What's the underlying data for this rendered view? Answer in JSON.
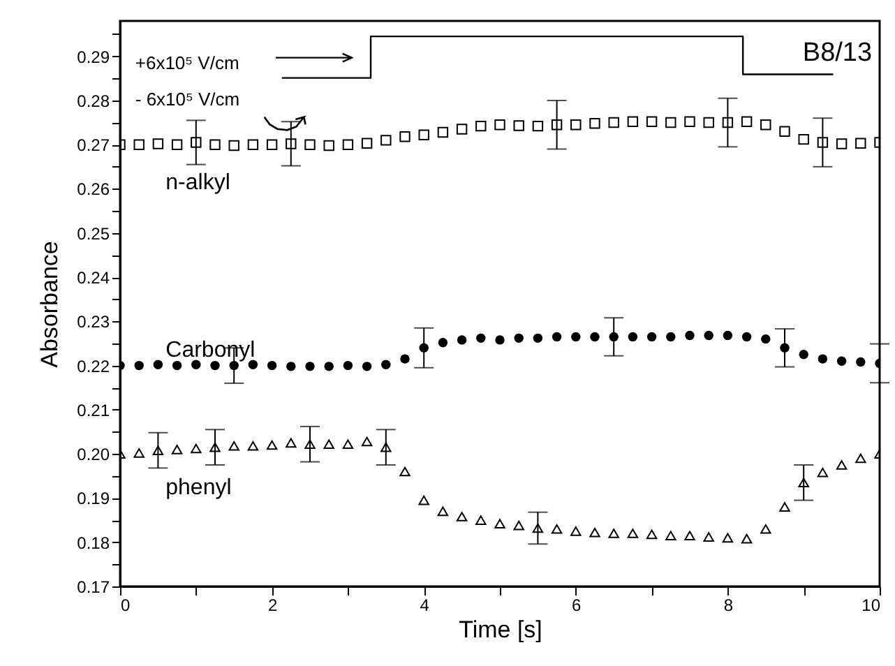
{
  "chart_data": {
    "type": "scatter",
    "xlabel": "Time [s]",
    "ylabel": "Absorbance",
    "xlim": [
      0,
      10
    ],
    "ylim": [
      0.17,
      0.298
    ],
    "xticks": [
      0,
      {
        "value": 1,
        "label": null
      },
      2,
      {
        "value": 3,
        "label": null
      },
      4,
      {
        "value": 5,
        "label": null
      },
      6,
      {
        "value": 7,
        "label": null
      },
      8,
      {
        "value": 9,
        "label": null
      },
      10
    ],
    "yticks": [
      0.17,
      {
        "value": 0.175,
        "label": null
      },
      0.18,
      {
        "value": 0.185,
        "label": null
      },
      0.19,
      {
        "value": 0.195,
        "label": null
      },
      {
        "value": 0.2,
        "label": "0.20"
      },
      {
        "value": 0.205,
        "label": null
      },
      0.21,
      {
        "value": 0.215,
        "label": null
      },
      0.22,
      {
        "value": 0.225,
        "label": null
      },
      0.23,
      {
        "value": 0.235,
        "label": null
      },
      0.24,
      {
        "value": 0.245,
        "label": null
      },
      0.25,
      {
        "value": 0.255,
        "label": null
      },
      0.26,
      {
        "value": 0.265,
        "label": null
      },
      0.27,
      {
        "value": 0.275,
        "label": null
      },
      0.28,
      {
        "value": 0.285,
        "label": null
      },
      0.29,
      {
        "value": 0.295,
        "label": null
      }
    ],
    "x": [
      0,
      0.25,
      0.5,
      0.75,
      1,
      1.25,
      1.5,
      1.75,
      2,
      2.25,
      2.5,
      2.75,
      3,
      3.25,
      3.5,
      3.75,
      4,
      4.25,
      4.5,
      4.75,
      5,
      5.25,
      5.5,
      5.75,
      6,
      6.25,
      6.5,
      6.75,
      7,
      7.25,
      7.5,
      7.75,
      8,
      8.25,
      8.5,
      8.75,
      9,
      9.25,
      9.5,
      9.75,
      10
    ],
    "series": [
      {
        "name": "n-alkyl",
        "color": "#000000",
        "marker": "square",
        "values": [
          0.27,
          0.27,
          0.2702,
          0.27,
          0.2705,
          0.27,
          0.2698,
          0.27,
          0.27,
          0.2702,
          0.27,
          0.2698,
          0.27,
          0.2703,
          0.271,
          0.2718,
          0.2722,
          0.2728,
          0.2735,
          0.2742,
          0.2745,
          0.2743,
          0.2742,
          0.2745,
          0.2745,
          0.2748,
          0.275,
          0.2752,
          0.2752,
          0.275,
          0.2752,
          0.275,
          0.275,
          0.2752,
          0.2745,
          0.273,
          0.2712,
          0.2705,
          0.2702,
          0.2703,
          0.2705
        ],
        "errors": [
          null,
          null,
          null,
          null,
          0.005,
          null,
          null,
          null,
          null,
          0.005,
          null,
          null,
          null,
          null,
          null,
          null,
          null,
          null,
          null,
          null,
          null,
          null,
          null,
          0.0055,
          null,
          null,
          null,
          null,
          null,
          null,
          null,
          null,
          0.0055,
          null,
          null,
          null,
          null,
          0.0055,
          null,
          null,
          null
        ]
      },
      {
        "name": "Carbonyl",
        "color": "#000000",
        "marker": "circle",
        "values": [
          0.22,
          0.22,
          0.2202,
          0.22,
          0.2202,
          0.22,
          0.22,
          0.2202,
          0.22,
          0.2198,
          0.2198,
          0.2198,
          0.22,
          0.2198,
          0.2202,
          0.2215,
          0.224,
          0.2252,
          0.2258,
          0.2262,
          0.2258,
          0.2262,
          0.2262,
          0.2265,
          0.2265,
          0.2265,
          0.2265,
          0.2265,
          0.2265,
          0.2265,
          0.2268,
          0.2268,
          0.2268,
          0.2265,
          0.226,
          0.224,
          0.2225,
          0.2215,
          0.221,
          0.2208,
          0.2205
        ],
        "errors": [
          null,
          null,
          null,
          null,
          null,
          null,
          0.004,
          null,
          null,
          null,
          null,
          null,
          null,
          null,
          null,
          null,
          0.0045,
          null,
          null,
          null,
          null,
          null,
          null,
          null,
          null,
          null,
          0.0043,
          null,
          null,
          null,
          null,
          null,
          null,
          null,
          null,
          0.0043,
          null,
          null,
          null,
          null,
          0.0044
        ]
      },
      {
        "name": "phenyl",
        "color": "#000000",
        "marker": "triangle",
        "values": [
          0.2,
          0.2002,
          0.2008,
          0.201,
          0.2012,
          0.2015,
          0.2018,
          0.2018,
          0.202,
          0.2025,
          0.2022,
          0.2022,
          0.2022,
          0.2028,
          0.2015,
          0.196,
          0.1895,
          0.187,
          0.1858,
          0.185,
          0.1842,
          0.1838,
          0.1832,
          0.183,
          0.1825,
          0.1822,
          0.182,
          0.182,
          0.1818,
          0.1815,
          0.1815,
          0.1812,
          0.181,
          0.1808,
          0.183,
          0.188,
          0.1935,
          0.1958,
          0.1975,
          0.199,
          0.2
        ],
        "errors": [
          null,
          null,
          0.004,
          null,
          null,
          0.004,
          null,
          null,
          null,
          null,
          0.004,
          null,
          null,
          null,
          0.004,
          null,
          null,
          null,
          null,
          null,
          null,
          null,
          0.0036,
          null,
          null,
          null,
          null,
          null,
          null,
          null,
          null,
          null,
          null,
          null,
          null,
          null,
          0.004,
          null,
          null,
          null,
          null
        ]
      },
      {
        "type": "line",
        "color": "#000000",
        "marker": "none",
        "line_style": "solid",
        "x": [
          2.13,
          3.3,
          3.3,
          8.2,
          8.2,
          9.39
        ],
        "values": [
          0.2851,
          0.2851,
          0.2945,
          0.2945,
          0.2859,
          0.2859
        ]
      }
    ],
    "annotations": [
      "+6x10⁵ V/cm",
      "- 6x10⁵ V/cm",
      "B8/13"
    ]
  }
}
